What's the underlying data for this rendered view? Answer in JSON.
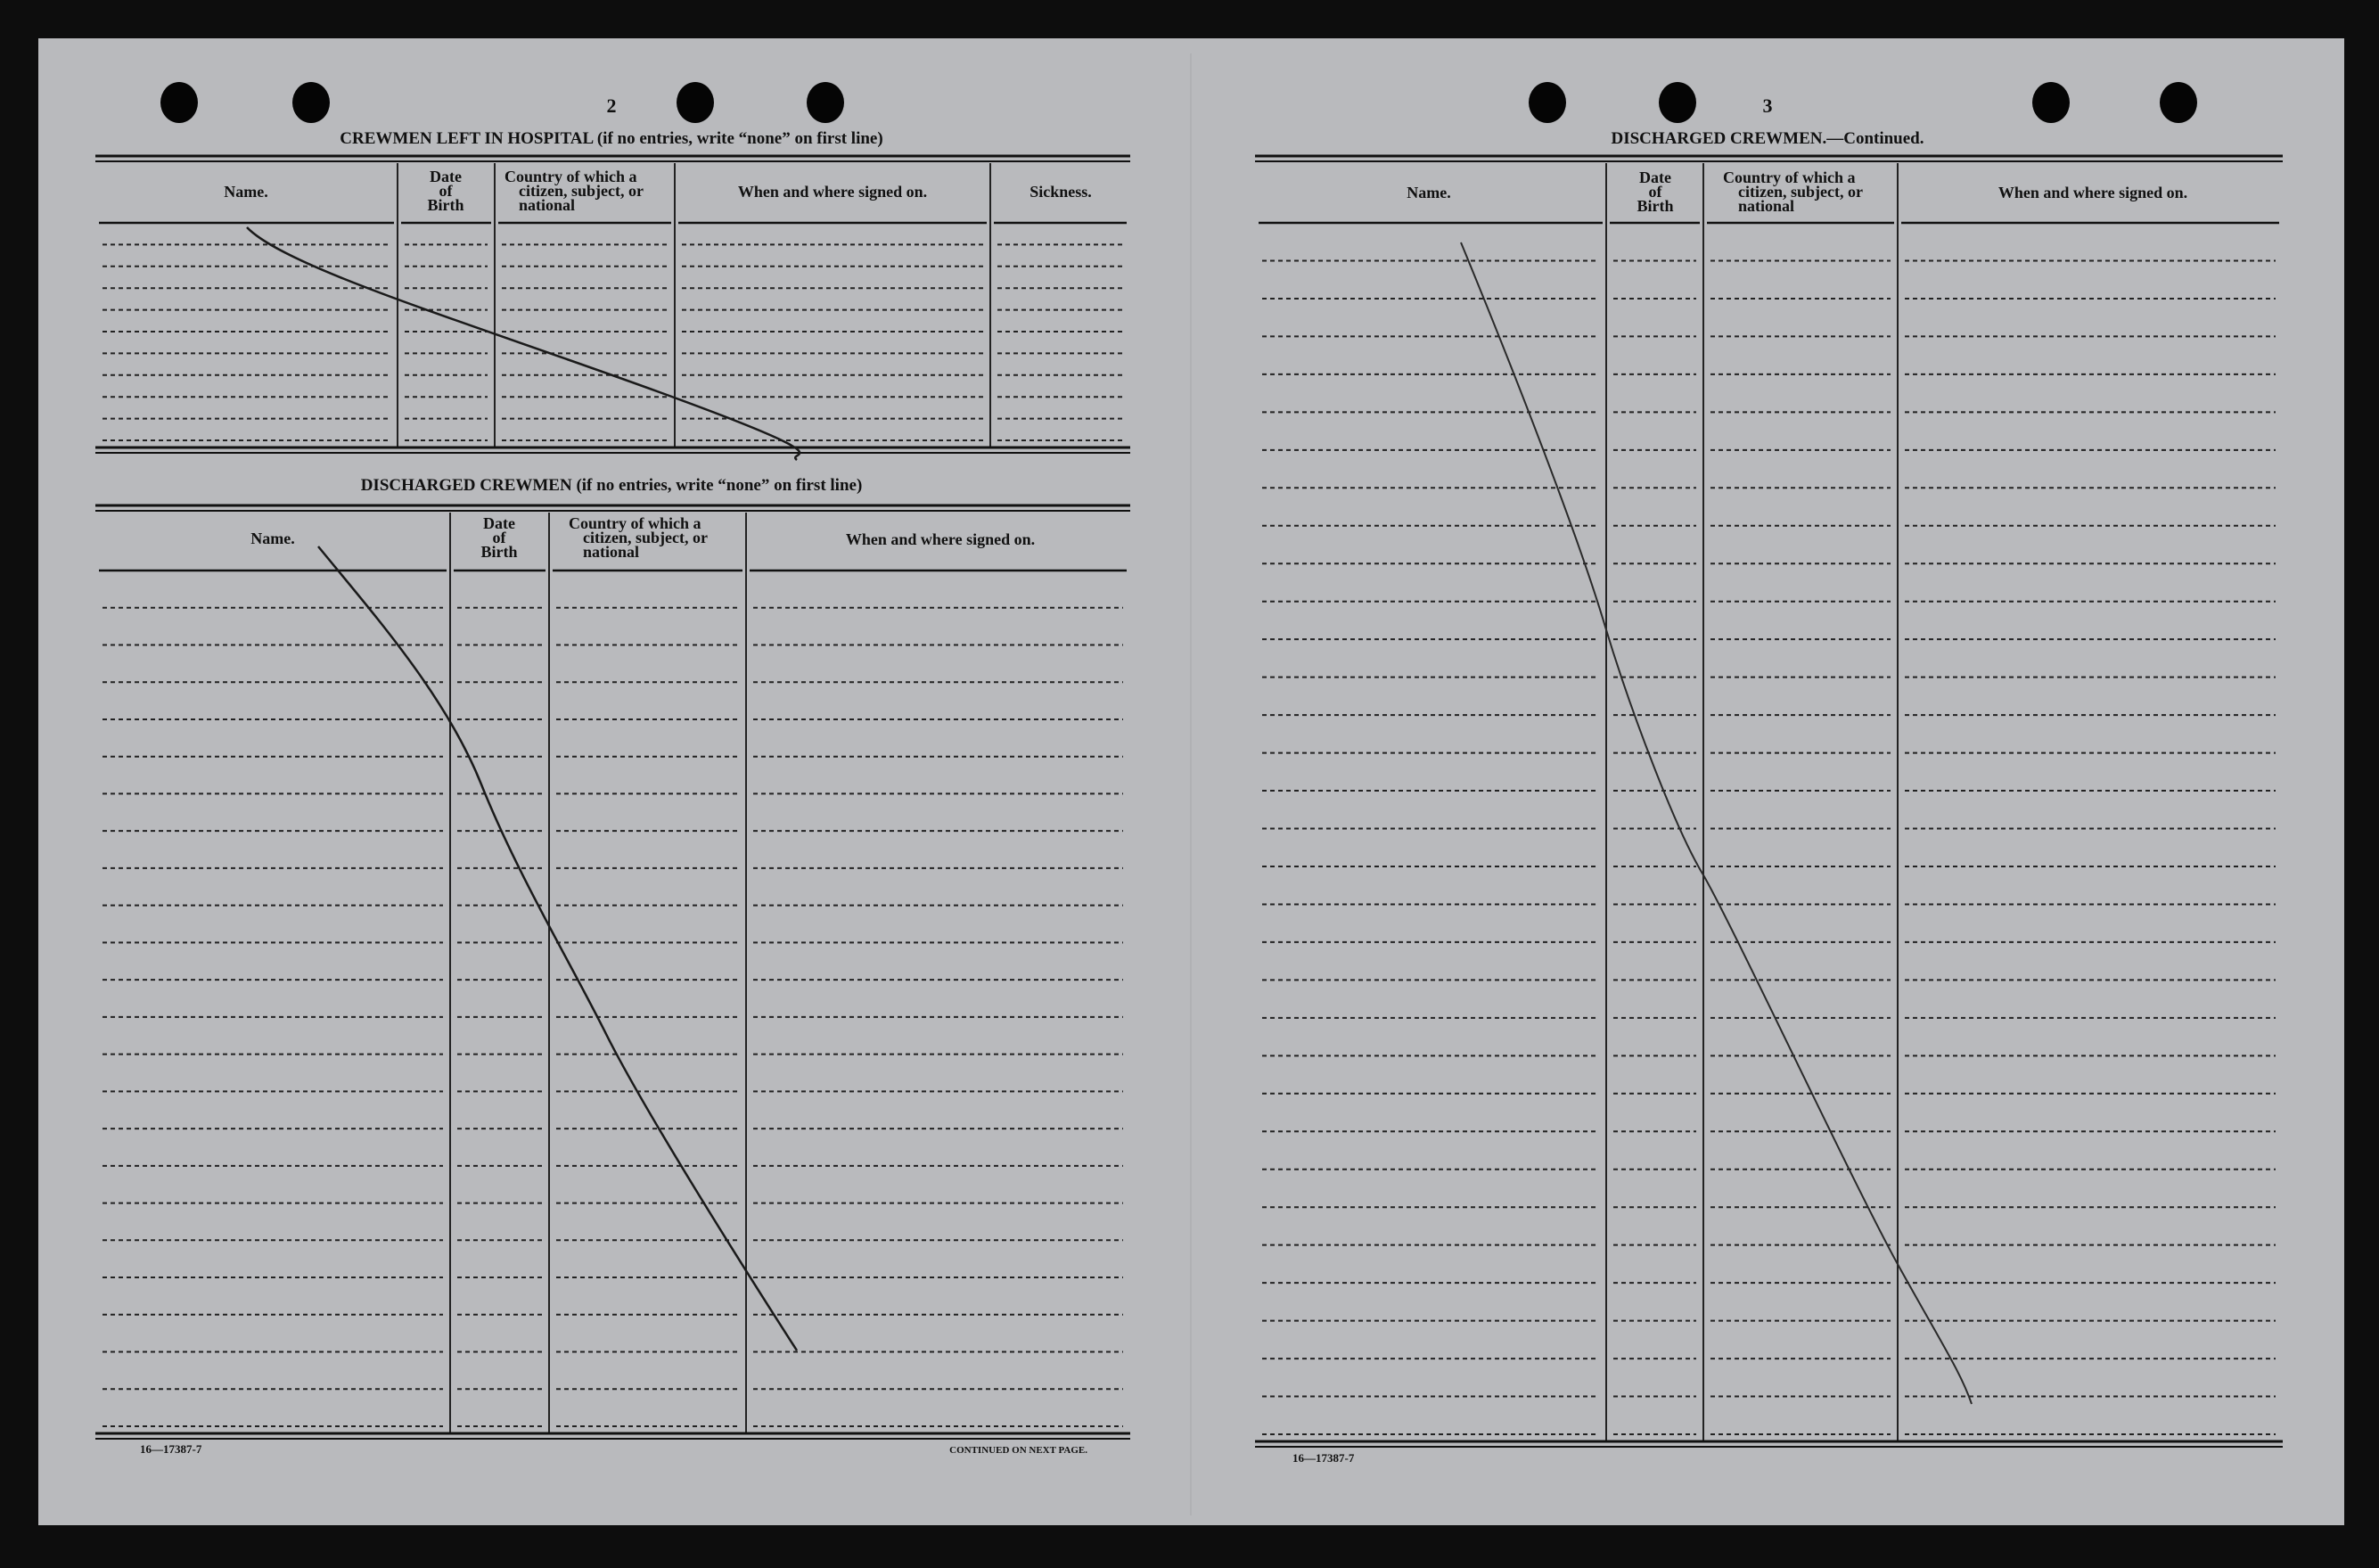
{
  "colors": {
    "paper": "#b9babd",
    "frame": "#0d0d0d",
    "ink": "#111111"
  },
  "left_page": {
    "page_number": "2",
    "hospital": {
      "title": "CREWMEN LEFT IN HOSPITAL (if no entries, write “none” on first line)",
      "columns": {
        "name": "Name.",
        "dob": [
          "Date",
          "of",
          "Birth"
        ],
        "country": [
          "Country of which a",
          "citizen, subject, or",
          "national"
        ],
        "signed": "When and where signed on.",
        "sickness": "Sickness."
      }
    },
    "discharged": {
      "title": "DISCHARGED CREWMEN (if no entries, write “none” on first line)",
      "columns": {
        "name": "Name.",
        "dob": [
          "Date",
          "of",
          "Birth"
        ],
        "country": [
          "Country of which a",
          "citizen, subject, or",
          "national"
        ],
        "signed": "When and where signed on."
      }
    },
    "form_number": "16—17387-7",
    "continued": "CONTINUED ON NEXT PAGE."
  },
  "right_page": {
    "page_number": "3",
    "title": "DISCHARGED CREWMEN.—Continued.",
    "columns": {
      "name": "Name.",
      "dob": [
        "Date",
        "of",
        "Birth"
      ],
      "country": [
        "Country of which a",
        "citizen, subject, or",
        "national"
      ],
      "signed": "When and where signed on."
    },
    "form_number": "16—17387-7"
  }
}
